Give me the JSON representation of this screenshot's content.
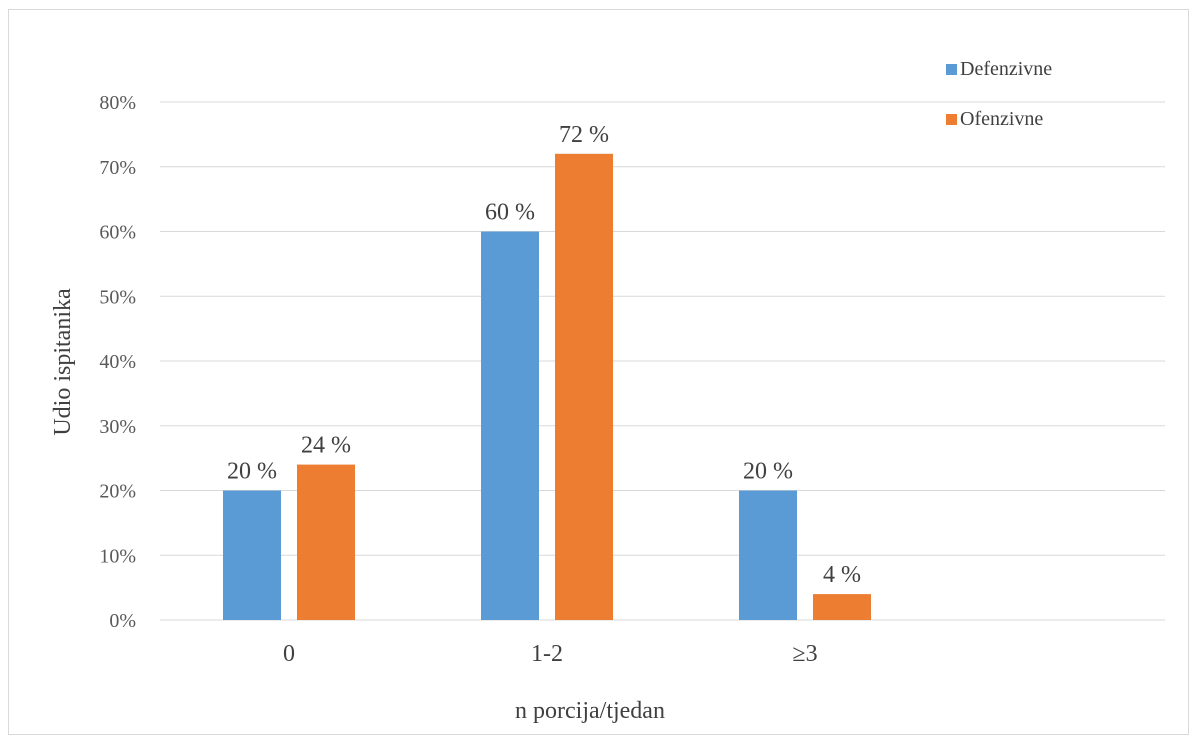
{
  "chart_data": {
    "type": "bar",
    "title": "",
    "xlabel": "n porcija/tjedan",
    "ylabel": "Udio ispitanika",
    "categories": [
      "0",
      "1-2",
      "≥3"
    ],
    "series": [
      {
        "name": "Defenzivne",
        "color": "#5b9bd5",
        "values": [
          20,
          60,
          20
        ],
        "labels": [
          "20 %",
          "60 %",
          "20 %"
        ]
      },
      {
        "name": "Ofenzivne",
        "color": "#ed7d31",
        "values": [
          24,
          72,
          4
        ],
        "labels": [
          "24 %",
          "72 %",
          "4 %"
        ]
      }
    ],
    "ylim": [
      0,
      80
    ],
    "yticks": [
      0,
      10,
      20,
      30,
      40,
      50,
      60,
      70,
      80
    ],
    "ytick_labels": [
      "0%",
      "10%",
      "20%",
      "30%",
      "40%",
      "50%",
      "60%",
      "70%",
      "80%"
    ],
    "grid": true,
    "legend_position": "top-right",
    "gridline_color": "#d9d9d9"
  }
}
